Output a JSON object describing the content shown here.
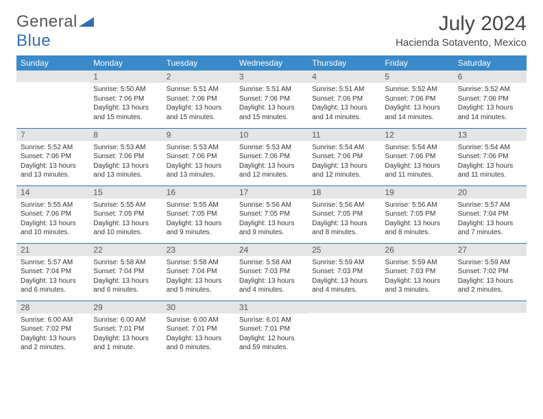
{
  "logo": {
    "part1": "General",
    "part2": "Blue"
  },
  "title": "July 2024",
  "subtitle": "Hacienda Sotavento, Mexico",
  "colors": {
    "header_bg": "#3a8ac9",
    "header_text": "#ffffff",
    "daynum_bg": "#e5e5e5",
    "border": "#2f6fb2",
    "logo_accent": "#2f6fb2",
    "text": "#333333"
  },
  "weekdays": [
    "Sunday",
    "Monday",
    "Tuesday",
    "Wednesday",
    "Thursday",
    "Friday",
    "Saturday"
  ],
  "weeks": [
    [
      {
        "n": "",
        "sunrise": "",
        "sunset": "",
        "day1": "",
        "day2": ""
      },
      {
        "n": "1",
        "sunrise": "Sunrise: 5:50 AM",
        "sunset": "Sunset: 7:06 PM",
        "day1": "Daylight: 13 hours",
        "day2": "and 15 minutes."
      },
      {
        "n": "2",
        "sunrise": "Sunrise: 5:51 AM",
        "sunset": "Sunset: 7:06 PM",
        "day1": "Daylight: 13 hours",
        "day2": "and 15 minutes."
      },
      {
        "n": "3",
        "sunrise": "Sunrise: 5:51 AM",
        "sunset": "Sunset: 7:06 PM",
        "day1": "Daylight: 13 hours",
        "day2": "and 15 minutes."
      },
      {
        "n": "4",
        "sunrise": "Sunrise: 5:51 AM",
        "sunset": "Sunset: 7:06 PM",
        "day1": "Daylight: 13 hours",
        "day2": "and 14 minutes."
      },
      {
        "n": "5",
        "sunrise": "Sunrise: 5:52 AM",
        "sunset": "Sunset: 7:06 PM",
        "day1": "Daylight: 13 hours",
        "day2": "and 14 minutes."
      },
      {
        "n": "6",
        "sunrise": "Sunrise: 5:52 AM",
        "sunset": "Sunset: 7:06 PM",
        "day1": "Daylight: 13 hours",
        "day2": "and 14 minutes."
      }
    ],
    [
      {
        "n": "7",
        "sunrise": "Sunrise: 5:52 AM",
        "sunset": "Sunset: 7:06 PM",
        "day1": "Daylight: 13 hours",
        "day2": "and 13 minutes."
      },
      {
        "n": "8",
        "sunrise": "Sunrise: 5:53 AM",
        "sunset": "Sunset: 7:06 PM",
        "day1": "Daylight: 13 hours",
        "day2": "and 13 minutes."
      },
      {
        "n": "9",
        "sunrise": "Sunrise: 5:53 AM",
        "sunset": "Sunset: 7:06 PM",
        "day1": "Daylight: 13 hours",
        "day2": "and 13 minutes."
      },
      {
        "n": "10",
        "sunrise": "Sunrise: 5:53 AM",
        "sunset": "Sunset: 7:06 PM",
        "day1": "Daylight: 13 hours",
        "day2": "and 12 minutes."
      },
      {
        "n": "11",
        "sunrise": "Sunrise: 5:54 AM",
        "sunset": "Sunset: 7:06 PM",
        "day1": "Daylight: 13 hours",
        "day2": "and 12 minutes."
      },
      {
        "n": "12",
        "sunrise": "Sunrise: 5:54 AM",
        "sunset": "Sunset: 7:06 PM",
        "day1": "Daylight: 13 hours",
        "day2": "and 11 minutes."
      },
      {
        "n": "13",
        "sunrise": "Sunrise: 5:54 AM",
        "sunset": "Sunset: 7:06 PM",
        "day1": "Daylight: 13 hours",
        "day2": "and 11 minutes."
      }
    ],
    [
      {
        "n": "14",
        "sunrise": "Sunrise: 5:55 AM",
        "sunset": "Sunset: 7:06 PM",
        "day1": "Daylight: 13 hours",
        "day2": "and 10 minutes."
      },
      {
        "n": "15",
        "sunrise": "Sunrise: 5:55 AM",
        "sunset": "Sunset: 7:05 PM",
        "day1": "Daylight: 13 hours",
        "day2": "and 10 minutes."
      },
      {
        "n": "16",
        "sunrise": "Sunrise: 5:55 AM",
        "sunset": "Sunset: 7:05 PM",
        "day1": "Daylight: 13 hours",
        "day2": "and 9 minutes."
      },
      {
        "n": "17",
        "sunrise": "Sunrise: 5:56 AM",
        "sunset": "Sunset: 7:05 PM",
        "day1": "Daylight: 13 hours",
        "day2": "and 9 minutes."
      },
      {
        "n": "18",
        "sunrise": "Sunrise: 5:56 AM",
        "sunset": "Sunset: 7:05 PM",
        "day1": "Daylight: 13 hours",
        "day2": "and 8 minutes."
      },
      {
        "n": "19",
        "sunrise": "Sunrise: 5:56 AM",
        "sunset": "Sunset: 7:05 PM",
        "day1": "Daylight: 13 hours",
        "day2": "and 8 minutes."
      },
      {
        "n": "20",
        "sunrise": "Sunrise: 5:57 AM",
        "sunset": "Sunset: 7:04 PM",
        "day1": "Daylight: 13 hours",
        "day2": "and 7 minutes."
      }
    ],
    [
      {
        "n": "21",
        "sunrise": "Sunrise: 5:57 AM",
        "sunset": "Sunset: 7:04 PM",
        "day1": "Daylight: 13 hours",
        "day2": "and 6 minutes."
      },
      {
        "n": "22",
        "sunrise": "Sunrise: 5:58 AM",
        "sunset": "Sunset: 7:04 PM",
        "day1": "Daylight: 13 hours",
        "day2": "and 6 minutes."
      },
      {
        "n": "23",
        "sunrise": "Sunrise: 5:58 AM",
        "sunset": "Sunset: 7:04 PM",
        "day1": "Daylight: 13 hours",
        "day2": "and 5 minutes."
      },
      {
        "n": "24",
        "sunrise": "Sunrise: 5:58 AM",
        "sunset": "Sunset: 7:03 PM",
        "day1": "Daylight: 13 hours",
        "day2": "and 4 minutes."
      },
      {
        "n": "25",
        "sunrise": "Sunrise: 5:59 AM",
        "sunset": "Sunset: 7:03 PM",
        "day1": "Daylight: 13 hours",
        "day2": "and 4 minutes."
      },
      {
        "n": "26",
        "sunrise": "Sunrise: 5:59 AM",
        "sunset": "Sunset: 7:03 PM",
        "day1": "Daylight: 13 hours",
        "day2": "and 3 minutes."
      },
      {
        "n": "27",
        "sunrise": "Sunrise: 5:59 AM",
        "sunset": "Sunset: 7:02 PM",
        "day1": "Daylight: 13 hours",
        "day2": "and 2 minutes."
      }
    ],
    [
      {
        "n": "28",
        "sunrise": "Sunrise: 6:00 AM",
        "sunset": "Sunset: 7:02 PM",
        "day1": "Daylight: 13 hours",
        "day2": "and 2 minutes."
      },
      {
        "n": "29",
        "sunrise": "Sunrise: 6:00 AM",
        "sunset": "Sunset: 7:01 PM",
        "day1": "Daylight: 13 hours",
        "day2": "and 1 minute."
      },
      {
        "n": "30",
        "sunrise": "Sunrise: 6:00 AM",
        "sunset": "Sunset: 7:01 PM",
        "day1": "Daylight: 13 hours",
        "day2": "and 0 minutes."
      },
      {
        "n": "31",
        "sunrise": "Sunrise: 6:01 AM",
        "sunset": "Sunset: 7:01 PM",
        "day1": "Daylight: 12 hours",
        "day2": "and 59 minutes."
      },
      {
        "n": "",
        "sunrise": "",
        "sunset": "",
        "day1": "",
        "day2": ""
      },
      {
        "n": "",
        "sunrise": "",
        "sunset": "",
        "day1": "",
        "day2": ""
      },
      {
        "n": "",
        "sunrise": "",
        "sunset": "",
        "day1": "",
        "day2": ""
      }
    ]
  ]
}
